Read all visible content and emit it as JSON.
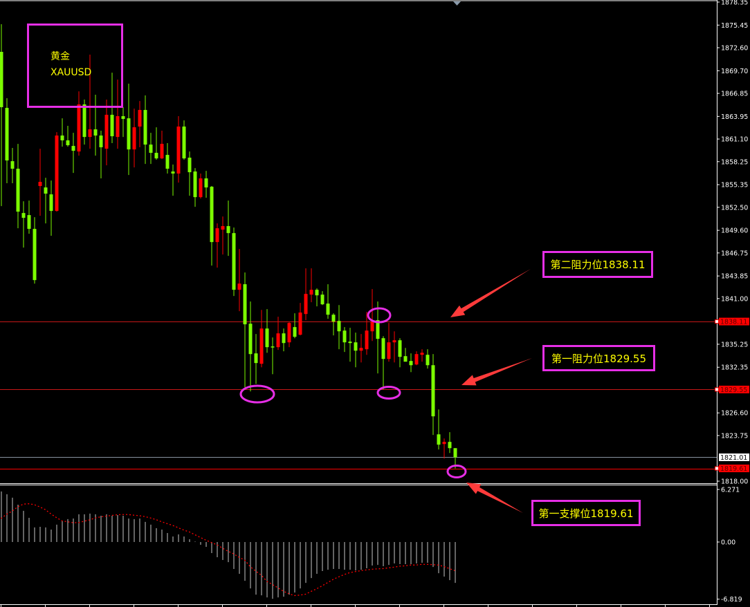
{
  "chart_data": [
    {
      "type": "candlestick",
      "title": "黄金",
      "subtitle": "XAUUSD",
      "ylim": [
        1818.0,
        1878.35
      ],
      "y_ticks": [
        "1878.35",
        "1875.45",
        "1872.60",
        "1869.70",
        "1866.85",
        "1863.95",
        "1861.10",
        "1858.25",
        "1855.35",
        "1852.50",
        "1849.60",
        "1846.75",
        "1843.85",
        "1841.00",
        "1835.25",
        "1832.35",
        "1826.60",
        "1823.75",
        "1818.00"
      ],
      "up_color": "#ff0000",
      "down_color": "#7cfc00",
      "candles_ohlc": [
        [
          1872.08,
          1875.56,
          1852.65,
          1865.11
        ],
        [
          1865.02,
          1866.24,
          1855.53,
          1858.4
        ],
        [
          1858.31,
          1859.97,
          1855.53,
          1857.36
        ],
        [
          1857.36,
          1860.49,
          1849.86,
          1851.95
        ],
        [
          1851.78,
          1853.26,
          1847.42,
          1851.17
        ],
        [
          1851.52,
          1853.35,
          1849.17,
          1849.78
        ],
        [
          1849.78,
          1851.26,
          1842.89,
          1843.33
        ],
        [
          1855.18,
          1859.88,
          1851.43,
          1855.7
        ],
        [
          1855.0,
          1856.22,
          1850.47,
          1854.22
        ],
        [
          1854.13,
          1855.87,
          1848.91,
          1852.04
        ],
        [
          1852.04,
          1861.97,
          1851.95,
          1861.54
        ],
        [
          1861.54,
          1863.71,
          1860.14,
          1860.93
        ],
        [
          1860.93,
          1862.76,
          1860.14,
          1860.32
        ],
        [
          1860.23,
          1861.88,
          1856.83,
          1859.62
        ],
        [
          1859.53,
          1867.11,
          1859.01,
          1865.46
        ],
        [
          1865.46,
          1866.07,
          1860.4,
          1861.36
        ],
        [
          1861.36,
          1871.73,
          1859.88,
          1862.32
        ],
        [
          1862.32,
          1866.68,
          1859.01,
          1861.54
        ],
        [
          1861.54,
          1862.15,
          1856.14,
          1860.06
        ],
        [
          1859.88,
          1866.07,
          1857.79,
          1864.15
        ],
        [
          1864.15,
          1869.46,
          1860.58,
          1861.45
        ],
        [
          1861.36,
          1868.59,
          1859.88,
          1863.98
        ],
        [
          1863.98,
          1865.11,
          1861.36,
          1863.63
        ],
        [
          1863.71,
          1868.07,
          1856.57,
          1859.79
        ],
        [
          1859.79,
          1864.93,
          1857.53,
          1862.58
        ],
        [
          1862.67,
          1865.89,
          1860.06,
          1864.76
        ],
        [
          1864.76,
          1866.59,
          1857.96,
          1860.4
        ],
        [
          1860.4,
          1861.88,
          1857.96,
          1859.36
        ],
        [
          1859.36,
          1862.58,
          1858.49,
          1858.66
        ],
        [
          1858.66,
          1862.15,
          1858.57,
          1860.49
        ],
        [
          1859.1,
          1860.58,
          1856.75,
          1857.36
        ],
        [
          1857.01,
          1857.88,
          1853.96,
          1856.75
        ],
        [
          1856.75,
          1863.98,
          1855.61,
          1862.67
        ],
        [
          1862.67,
          1863.45,
          1858.5,
          1858.66
        ],
        [
          1858.75,
          1859.53,
          1853.96,
          1856.92
        ],
        [
          1857.01,
          1857.44,
          1852.56,
          1853.78
        ],
        [
          1853.78,
          1856.75,
          1853.61,
          1856.14
        ],
        [
          1856.14,
          1857.09,
          1853.7,
          1855.0
        ],
        [
          1855.09,
          1855.18,
          1845.16,
          1848.12
        ],
        [
          1848.12,
          1850.47,
          1844.9,
          1849.86
        ],
        [
          1849.69,
          1851.34,
          1846.55,
          1850.13
        ],
        [
          1850.13,
          1853.35,
          1846.38,
          1849.25
        ],
        [
          1849.25,
          1849.95,
          1841.33,
          1842.11
        ],
        [
          1842.11,
          1847.25,
          1839.41,
          1842.89
        ],
        [
          1842.81,
          1844.29,
          1829.83,
          1837.76
        ],
        [
          1837.84,
          1840.63,
          1829.31,
          1834.01
        ],
        [
          1834.1,
          1836.54,
          1830.26,
          1832.88
        ],
        [
          1832.79,
          1839.58,
          1832.35,
          1837.23
        ],
        [
          1837.23,
          1839.67,
          1834.18,
          1834.88
        ],
        [
          1834.97,
          1836.1,
          1831.48,
          1834.88
        ],
        [
          1834.88,
          1838.71,
          1834.53,
          1836.62
        ],
        [
          1836.62,
          1837.23,
          1834.36,
          1835.4
        ],
        [
          1835.49,
          1838.02,
          1834.88,
          1837.93
        ],
        [
          1837.41,
          1839.15,
          1836.01,
          1836.19
        ],
        [
          1836.45,
          1840.46,
          1836.36,
          1839.24
        ],
        [
          1839.06,
          1844.81,
          1838.28,
          1841.59
        ],
        [
          1841.5,
          1844.81,
          1840.54,
          1842.11
        ],
        [
          1842.11,
          1842.29,
          1840.02,
          1841.41
        ],
        [
          1841.5,
          1841.94,
          1840.19,
          1840.28
        ],
        [
          1840.37,
          1842.81,
          1838.45,
          1838.97
        ],
        [
          1838.97,
          1839.15,
          1836.36,
          1838.1
        ],
        [
          1838.19,
          1840.19,
          1834.62,
          1836.88
        ],
        [
          1836.97,
          1837.41,
          1834.27,
          1835.49
        ],
        [
          1835.58,
          1837.32,
          1833.05,
          1835.4
        ],
        [
          1835.49,
          1836.71,
          1832.35,
          1834.44
        ],
        [
          1834.44,
          1836.54,
          1832.96,
          1834.79
        ],
        [
          1834.62,
          1839.32,
          1833.92,
          1836.97
        ],
        [
          1836.88,
          1842.2,
          1835.66,
          1838.1
        ],
        [
          1838.28,
          1840.63,
          1831.57,
          1835.93
        ],
        [
          1836.01,
          1836.27,
          1829.57,
          1833.4
        ],
        [
          1833.4,
          1837.93,
          1833.05,
          1835.49
        ],
        [
          1835.49,
          1836.88,
          1832.96,
          1835.75
        ],
        [
          1835.75,
          1836.01,
          1832.35,
          1833.66
        ],
        [
          1833.75,
          1834.79,
          1833.14,
          1833.05
        ],
        [
          1833.14,
          1834.1,
          1831.74,
          1832.61
        ],
        [
          1832.7,
          1834.36,
          1832.61,
          1834.01
        ],
        [
          1833.92,
          1834.62,
          1833.05,
          1834.18
        ],
        [
          1833.92,
          1834.62,
          1832.18,
          1832.61
        ],
        [
          1832.61,
          1834.01,
          1823.82,
          1826.17
        ],
        [
          1823.9,
          1827.04,
          1821.99,
          1822.6
        ],
        [
          1822.68,
          1823.38,
          1820.85,
          1822.95
        ],
        [
          1822.95,
          1824.17,
          1821.55,
          1822.16
        ],
        [
          1822.16,
          1822.16,
          1819.61,
          1821.01
        ]
      ],
      "levels": [
        {
          "value": "1838.11",
          "label": "第二阻力位1838.11",
          "line_color": "#c81818",
          "tag_bg": "#ff0000"
        },
        {
          "value": "1829.55",
          "label": "第一阻力位1829.55",
          "line_color": "#c81818",
          "tag_bg": "#ff0000"
        },
        {
          "value": "1821.01",
          "label": "",
          "line_color": "#8894a0",
          "tag_bg": "#ffffff"
        },
        {
          "value": "1819.61",
          "label": "第一支撑位1819.61",
          "line_color": "#ff0000",
          "tag_bg": "#ff0000"
        }
      ],
      "annotation_color": "#e62ee6",
      "text_color": "#ffff00",
      "arrow_color": "#ff3b3b"
    },
    {
      "type": "bar",
      "ylim": [
        -6.819,
        6.271
      ],
      "y_ticks": [
        "6.271",
        "0.00",
        "-6.819"
      ],
      "bar_color": "#c8c8c8",
      "line_color": "#ff0000",
      "histogram": [
        6.03,
        5.7,
        5.29,
        4.46,
        3.72,
        2.89,
        1.74,
        1.82,
        1.74,
        1.49,
        2.07,
        2.48,
        2.73,
        2.81,
        3.31,
        3.31,
        3.39,
        3.31,
        3.14,
        3.31,
        3.14,
        3.22,
        3.14,
        2.81,
        2.73,
        2.81,
        2.4,
        2.07,
        1.65,
        1.49,
        1.07,
        0.66,
        0.91,
        0.66,
        0.33,
        0.05,
        -0.33,
        -0.58,
        -1.32,
        -1.82,
        -2.15,
        -2.4,
        -3.22,
        -3.8,
        -4.63,
        -5.54,
        -6.28,
        -6.36,
        -6.61,
        -6.78,
        -6.61,
        -6.53,
        -6.28,
        -6.03,
        -5.54,
        -4.88,
        -4.3,
        -3.8,
        -3.47,
        -3.31,
        -3.22,
        -3.22,
        -3.31,
        -3.31,
        -3.39,
        -3.31,
        -3.14,
        -2.81,
        -2.73,
        -2.89,
        -2.73,
        -2.56,
        -2.64,
        -2.64,
        -2.64,
        -2.56,
        -2.48,
        -2.48,
        -2.98,
        -3.72,
        -4.13,
        -4.55,
        -4.88
      ],
      "signal": [
        2.81,
        3.31,
        3.69,
        4.19,
        4.52,
        4.57,
        4.46,
        4.19,
        3.86,
        3.36,
        2.92,
        2.53,
        2.42,
        2.31,
        2.31,
        2.48,
        2.64,
        2.87,
        3.0,
        3.09,
        3.17,
        3.25,
        3.28,
        3.28,
        3.2,
        3.14,
        3.03,
        2.87,
        2.67,
        2.42,
        2.2,
        1.98,
        1.71,
        1.43,
        1.21,
        0.88,
        0.55,
        0.22,
        -0.06,
        -0.33,
        -0.72,
        -1.1,
        -1.4,
        -1.82,
        -2.15,
        -2.92,
        -3.47,
        -3.94,
        -4.68,
        -5.07,
        -5.45,
        -5.87,
        -6.17,
        -6.39,
        -6.34,
        -6.23,
        -5.9,
        -5.59,
        -5.23,
        -4.85,
        -4.46,
        -4.16,
        -3.88,
        -3.66,
        -3.53,
        -3.42,
        -3.33,
        -3.25,
        -3.2,
        -3.17,
        -3.09,
        -3.0,
        -2.89,
        -2.84,
        -2.75,
        -2.75,
        -2.67,
        -2.67,
        -2.7,
        -2.75,
        -2.92,
        -3.17,
        -3.42
      ]
    }
  ]
}
